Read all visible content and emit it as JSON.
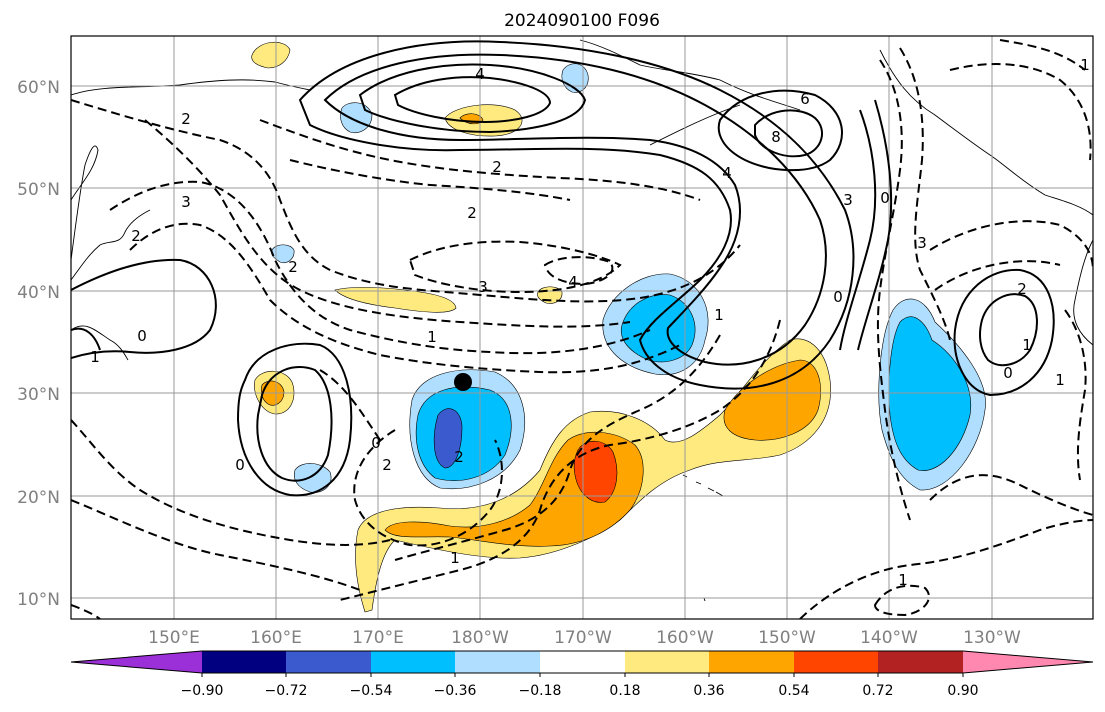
{
  "title": "2024090100 F096",
  "map": {
    "lat_labels": [
      "60°N",
      "50°N",
      "40°N",
      "30°N",
      "20°N",
      "10°N"
    ],
    "lon_labels": [
      "150°E",
      "160°E",
      "170°E",
      "180°W",
      "170°W",
      "160°W",
      "150°W",
      "140°W",
      "130°W"
    ],
    "contour_labels": [
      "4",
      "6",
      "8",
      "4",
      "3",
      "0",
      "2",
      "2",
      "3",
      "2",
      "2",
      "2",
      "3",
      "3",
      "4",
      "1",
      "1",
      "0",
      "2",
      "0",
      "0",
      "2",
      "1",
      "1",
      "0",
      "1",
      "0",
      "1",
      "1",
      "2",
      "1"
    ],
    "marker": "storm-center-dot",
    "colors": {
      "solid_contour": "#000000",
      "dashed_contour": "#000000",
      "grid": "#9a9a9a",
      "tick_label": "#808080",
      "coastline": "#000000"
    }
  },
  "colorbar": {
    "tick_labels": [
      "−0.90",
      "−0.72",
      "−0.54",
      "−0.36",
      "−0.18",
      "0.18",
      "0.36",
      "0.54",
      "0.72",
      "0.90"
    ],
    "colors": [
      "#9b30d9",
      "#000080",
      "#3a5acd",
      "#00bfff",
      "#afdeff",
      "#ffffff",
      "#ffea80",
      "#ffa500",
      "#ff4500",
      "#b22222",
      "#ff88b0"
    ]
  }
}
